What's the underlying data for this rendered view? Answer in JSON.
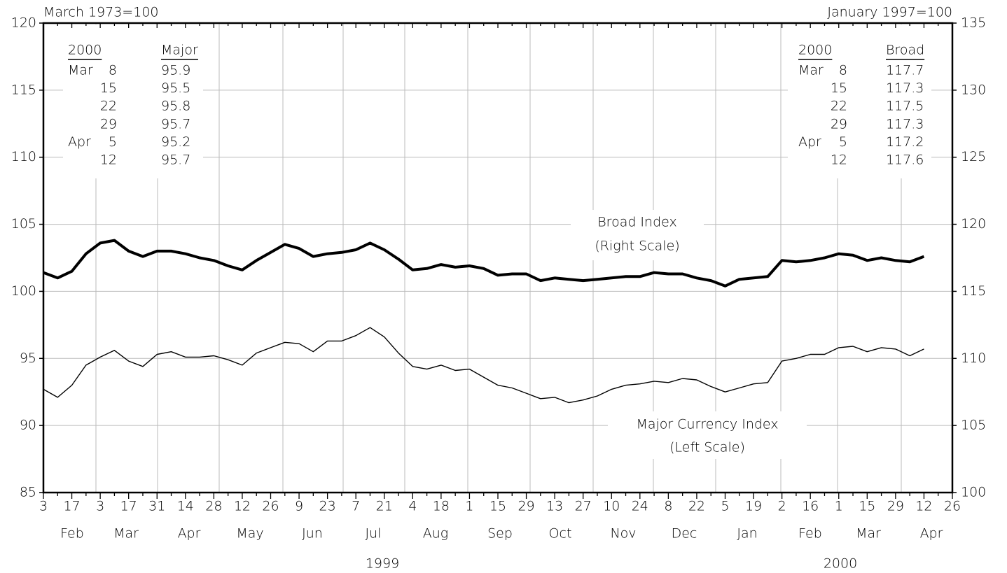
{
  "chart_data": {
    "type": "line",
    "ylabel": "March 1973=100",
    "y2label": "January 1997=100",
    "categories": [
      "3",
      null,
      "17",
      null,
      "3",
      null,
      "17",
      null,
      "31",
      null,
      "14",
      null,
      "28",
      null,
      "12",
      null,
      "26",
      null,
      "9",
      null,
      "23",
      null,
      "7",
      null,
      "21",
      null,
      "4",
      null,
      "18",
      null,
      "1",
      null,
      "15",
      null,
      "29",
      null,
      "13",
      null,
      "27",
      null,
      "10",
      null,
      "24",
      null,
      "8",
      null,
      "22",
      null,
      "5",
      null,
      "19",
      null,
      "2",
      null,
      "16",
      null,
      "1",
      null,
      "15",
      null,
      "29",
      null,
      "12",
      null,
      "26"
    ],
    "months": [
      "Feb",
      "Mar",
      "Apr",
      "May",
      "Jun",
      "Jul",
      "Aug",
      "Sep",
      "Oct",
      "Nov",
      "Dec",
      "Jan",
      "Feb",
      "Mar",
      "Apr"
    ],
    "years": [
      "1999",
      "2000"
    ],
    "series": [
      {
        "name": "Broad Index",
        "note": "(Right Scale)",
        "axis": "y2",
        "color": "#000000",
        "values": [
          116.4,
          116.0,
          116.5,
          117.8,
          118.6,
          118.8,
          118.0,
          117.6,
          118.0,
          118.0,
          117.8,
          117.5,
          117.3,
          116.9,
          116.6,
          117.3,
          117.9,
          118.5,
          118.2,
          117.6,
          117.8,
          117.9,
          118.1,
          118.6,
          118.1,
          117.4,
          116.6,
          116.7,
          117.0,
          116.8,
          116.9,
          116.7,
          116.2,
          116.3,
          116.3,
          115.8,
          116.0,
          115.9,
          115.8,
          115.9,
          116.0,
          116.1,
          116.1,
          116.4,
          116.3,
          116.3,
          116.0,
          115.8,
          115.4,
          115.9,
          116.0,
          116.1,
          117.3,
          117.2,
          117.3,
          117.5,
          117.8,
          117.7,
          117.3,
          117.5,
          117.3,
          117.2,
          117.6,
          null,
          null
        ]
      },
      {
        "name": "Major Currency Index",
        "note": "(Left Scale)",
        "color": "#000000",
        "values": [
          92.7,
          92.1,
          93.0,
          94.5,
          95.1,
          95.6,
          94.8,
          94.4,
          95.3,
          95.5,
          95.1,
          95.1,
          95.2,
          94.9,
          94.5,
          95.4,
          95.8,
          96.2,
          96.1,
          95.5,
          96.3,
          96.3,
          96.7,
          97.3,
          96.6,
          95.4,
          94.4,
          94.2,
          94.5,
          94.1,
          94.2,
          93.6,
          93.0,
          92.8,
          92.4,
          92.0,
          92.1,
          91.7,
          91.9,
          92.2,
          92.7,
          93.0,
          93.1,
          93.3,
          93.2,
          93.5,
          93.4,
          92.9,
          92.5,
          92.8,
          93.1,
          93.2,
          94.8,
          95.0,
          95.3,
          95.3,
          95.8,
          95.9,
          95.5,
          95.8,
          95.7,
          95.2,
          95.7,
          null,
          null
        ]
      }
    ],
    "ylim": [
      85,
      120
    ],
    "yticks": [
      85,
      90,
      95,
      100,
      105,
      110,
      115,
      120
    ],
    "y2lim": [
      100,
      135
    ],
    "y2ticks": [
      100,
      105,
      110,
      115,
      120,
      125,
      130,
      135
    ],
    "grid": true,
    "tables": [
      {
        "headers": [
          "2000",
          "Major"
        ],
        "rows": [
          [
            "Mar",
            8,
            95.9
          ],
          [
            null,
            15,
            95.5
          ],
          [
            null,
            22,
            95.8
          ],
          [
            null,
            29,
            95.7
          ],
          [
            "Apr",
            5,
            95.2
          ],
          [
            null,
            12,
            95.7
          ]
        ]
      },
      {
        "headers": [
          "2000",
          "Broad"
        ],
        "rows": [
          [
            "Mar",
            8,
            117.7
          ],
          [
            null,
            15,
            117.3
          ],
          [
            null,
            22,
            117.5
          ],
          [
            null,
            29,
            117.3
          ],
          [
            "Apr",
            5,
            117.2
          ],
          [
            null,
            12,
            117.6
          ]
        ]
      }
    ]
  }
}
